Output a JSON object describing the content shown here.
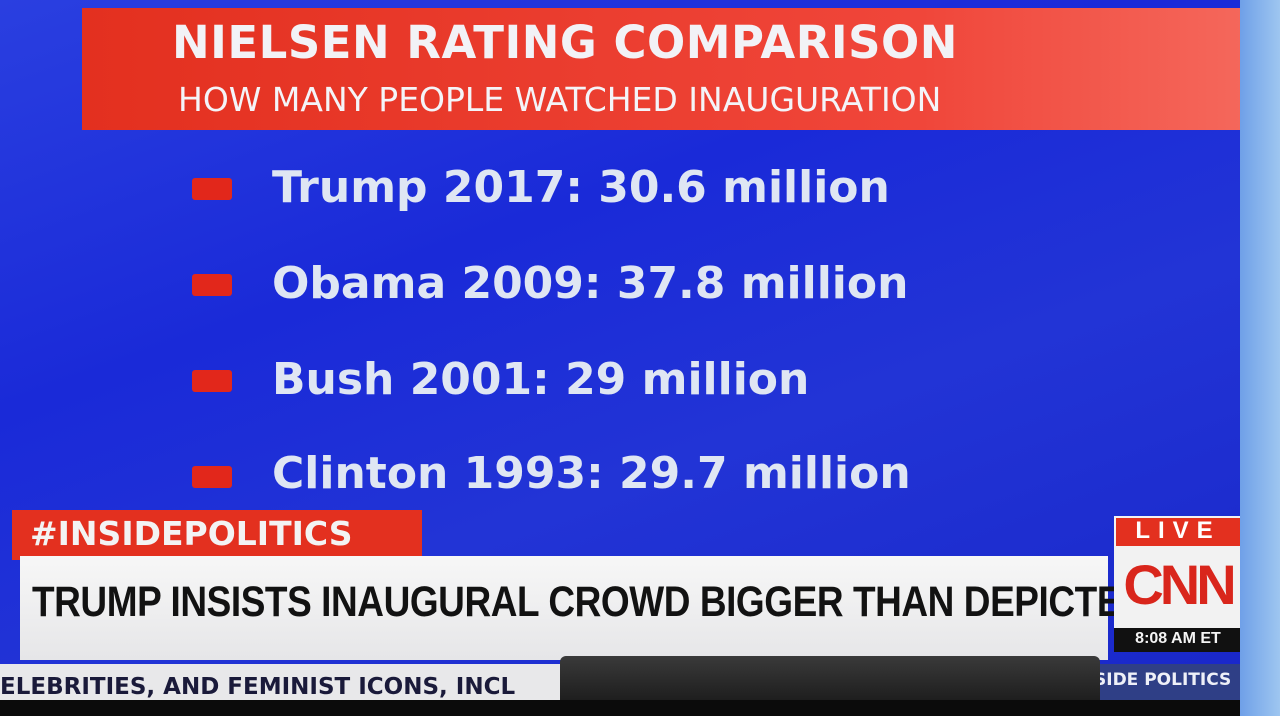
{
  "graphic": {
    "title": "NIELSEN RATING COMPARISON",
    "subtitle": "HOW MANY PEOPLE WATCHED INAUGURATION",
    "items": [
      {
        "label": "Trump 2017: 30.6 million"
      },
      {
        "label": "Obama 2009: 37.8 million"
      },
      {
        "label": "Bush 2001: 29 million"
      },
      {
        "label": "Clinton 1993: 29.7 million"
      }
    ]
  },
  "lower_third": {
    "hashtag": "#INSIDEPOLITICS",
    "headline": "TRUMP INSISTS INAUGURAL CROWD BIGGER THAN DEPICTED",
    "live": "LIVE",
    "network": "CNN",
    "time": "8:08 AM ET",
    "ticker_left": "ELEBRITIES, AND FEMINIST ICONS, INCL",
    "ticker_right": "SIDE POLITICS"
  },
  "colors": {
    "accent_red": "#e3301f",
    "background_blue": "#1f2ed6"
  }
}
